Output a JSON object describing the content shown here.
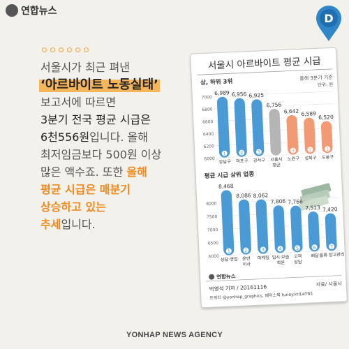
{
  "brand": {
    "logo_text": "연합뉴스",
    "pin_letter": "D",
    "footer": "YONHAP NEWS AGENCY"
  },
  "story": {
    "line1": "서울시가 최근 펴낸",
    "line2": "‘아르바이트 노동실태’",
    "line3": "보고서에 따르면",
    "line4": "3분기 전국 평균 시급은",
    "line5a": "6천556원",
    "line5b": "입니다. 올해",
    "line6": "최저임금보다 500원 이상",
    "line7a": "많은 액수죠. 또한 ",
    "line7b": "올해",
    "line8": "평균 시급은 매분기",
    "line9": "상승하고 있는",
    "line10a": "추세",
    "line10b": "입니다."
  },
  "card": {
    "title": "서울시 아르바이트 평균 시급",
    "note1": "올해 3분기 기준",
    "note2": "단위: 원",
    "credit1": "박영석 기자 / 20161116",
    "credit2": "트위터 @yonhap_graphics, 페이스북 tuney.kr/LeYN1",
    "source": "자료/ 서울시",
    "card_logo": "연합뉴스",
    "colors": {
      "blue": "#4a9ad6",
      "gray": "#b5b5b5",
      "orange": "#f29a74",
      "accent": "#ef8a1e"
    }
  },
  "chart_data": [
    {
      "type": "bar",
      "title": "상, 하위 3위",
      "categories": [
        "강남구",
        "마포구",
        "강서구",
        "서울시 평균",
        "노원구",
        "성북구",
        "도봉구"
      ],
      "ranks": [
        "1",
        "2",
        "3",
        "",
        "3",
        "2",
        "1"
      ],
      "values": [
        6989,
        6956,
        6925,
        6756,
        6642,
        6589,
        6520
      ],
      "value_labels": [
        "6,989",
        "6,956",
        "6,925",
        "6,756",
        "6,642",
        "6,589",
        "6,520"
      ],
      "yticks": [
        "7000",
        "6800",
        "6600",
        "6400",
        "6200",
        "6000"
      ],
      "ylim": [
        6000,
        7000
      ]
    },
    {
      "type": "bar",
      "title": "평균 시급 상위 업종",
      "categories": [
        "상담·영업",
        "운반 이사",
        "마케팅",
        "입시·보습 학원",
        "고객 상담",
        "배달",
        "물류·창고관리"
      ],
      "ranks": [
        "1",
        "2",
        "3",
        "4",
        "5",
        "6",
        "7"
      ],
      "values": [
        8468,
        8086,
        8062,
        7806,
        7766,
        7513,
        7420
      ],
      "value_labels": [
        "8,468",
        "8,086",
        "8,062",
        "7,806",
        "7,766",
        "7,513",
        "7,420"
      ],
      "yticks": [
        "8000",
        "7500",
        "7000",
        "6500",
        "6000"
      ],
      "ylim": [
        6000,
        8700
      ]
    }
  ]
}
